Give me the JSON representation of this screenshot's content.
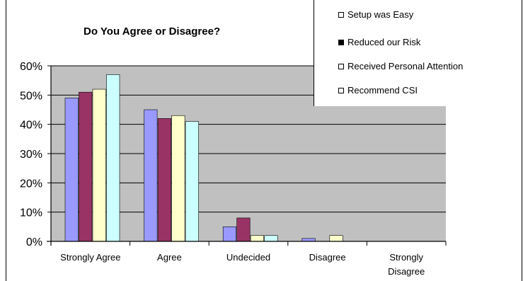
{
  "chart_data": {
    "type": "bar",
    "title": "Do You Agree or Disagree?",
    "xlabel": "",
    "ylabel": "",
    "categories": [
      "Strongly Agree",
      "Agree",
      "Undecided",
      "Disagree",
      "Strongly Disagree"
    ],
    "category_lines": [
      [
        "Strongly Agree"
      ],
      [
        "Agree"
      ],
      [
        "Undecided"
      ],
      [
        "Disagree"
      ],
      [
        "Strongly",
        "Disagree"
      ]
    ],
    "ylim": [
      0,
      60
    ],
    "yticks": [
      0,
      10,
      20,
      30,
      40,
      50,
      60
    ],
    "ytick_labels": [
      "0%",
      "10%",
      "20%",
      "30%",
      "40%",
      "50%",
      "60%"
    ],
    "grid": "horizontal",
    "legend_position": "top-right",
    "series": [
      {
        "name": "Setup was Easy",
        "color": "#9999ff",
        "values": [
          49,
          45,
          5,
          1,
          0
        ]
      },
      {
        "name": "Reduced our Risk",
        "color": "#993366",
        "values": [
          51,
          42,
          8,
          0,
          0
        ]
      },
      {
        "name": "Received Personal Attention",
        "color": "#ffffcc",
        "values": [
          52,
          43,
          2,
          2,
          0
        ]
      },
      {
        "name": "Recommend CSI",
        "color": "#ccffff",
        "values": [
          57,
          41,
          2,
          0,
          0
        ]
      }
    ]
  },
  "legend": {
    "items": [
      {
        "label": "Setup was Easy",
        "swatch": "#ffffff"
      },
      {
        "label": "Reduced our Risk",
        "swatch": "#000000"
      },
      {
        "label": "Received Personal Attention",
        "swatch": "#ffffff"
      },
      {
        "label": "Recommend CSI",
        "swatch": "#ffffff"
      }
    ]
  },
  "colors": {
    "plot_background": "#c0c0c0",
    "gridline": "#000000"
  }
}
